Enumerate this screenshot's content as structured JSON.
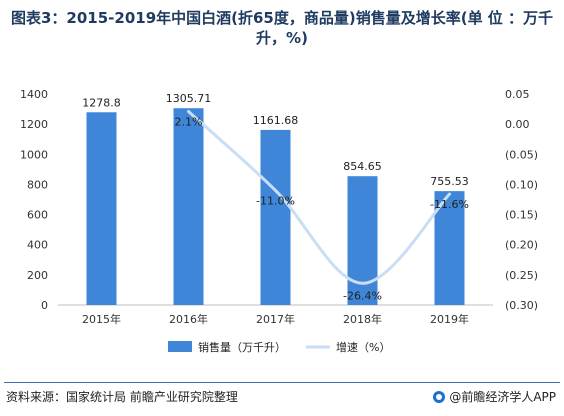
{
  "title": "图表3：2015-2019年中国白酒(折65度，商品量)销售量及增长率(单 位 ：万千升，%)",
  "footer": {
    "source": "资料来源：国家统计局 前瞻产业研究院整理",
    "brand": "@前瞻经济学人APP"
  },
  "chart_data": {
    "type": "bar",
    "categories": [
      "2015年",
      "2016年",
      "2017年",
      "2018年",
      "2019年"
    ],
    "series": [
      {
        "name": "销售量（万千升）",
        "type": "bar",
        "axis": "left",
        "values": [
          1278.8,
          1305.71,
          1161.68,
          854.65,
          755.53
        ],
        "labels": [
          "1278.8",
          "1305.71",
          "1161.68",
          "854.65",
          "755.53"
        ],
        "color": "#3f86d8"
      },
      {
        "name": "增速（%）",
        "type": "line",
        "axis": "right",
        "values": [
          null,
          0.021,
          -0.11,
          -0.264,
          -0.116
        ],
        "labels": [
          "",
          "2.1%",
          "-11.0%",
          "-26.4%",
          "-11.6%"
        ],
        "color": "#c9def4"
      }
    ],
    "y_left": {
      "min": 0,
      "max": 1400,
      "ticks": [
        0,
        200,
        400,
        600,
        800,
        1000,
        1200,
        1400
      ],
      "tick_labels": [
        "0",
        "200",
        "400",
        "600",
        "800",
        "1000",
        "1200",
        "1400"
      ]
    },
    "y_right": {
      "min": -0.3,
      "max": 0.05,
      "ticks": [
        0.05,
        0.0,
        -0.05,
        -0.1,
        -0.15,
        -0.2,
        -0.25,
        -0.3
      ],
      "tick_labels": [
        "0.05",
        "0.00",
        "(0.05)",
        "(0.10)",
        "(0.15)",
        "(0.20)",
        "(0.25)",
        "(0.30)"
      ]
    },
    "legend": "bottom",
    "grid": false
  }
}
